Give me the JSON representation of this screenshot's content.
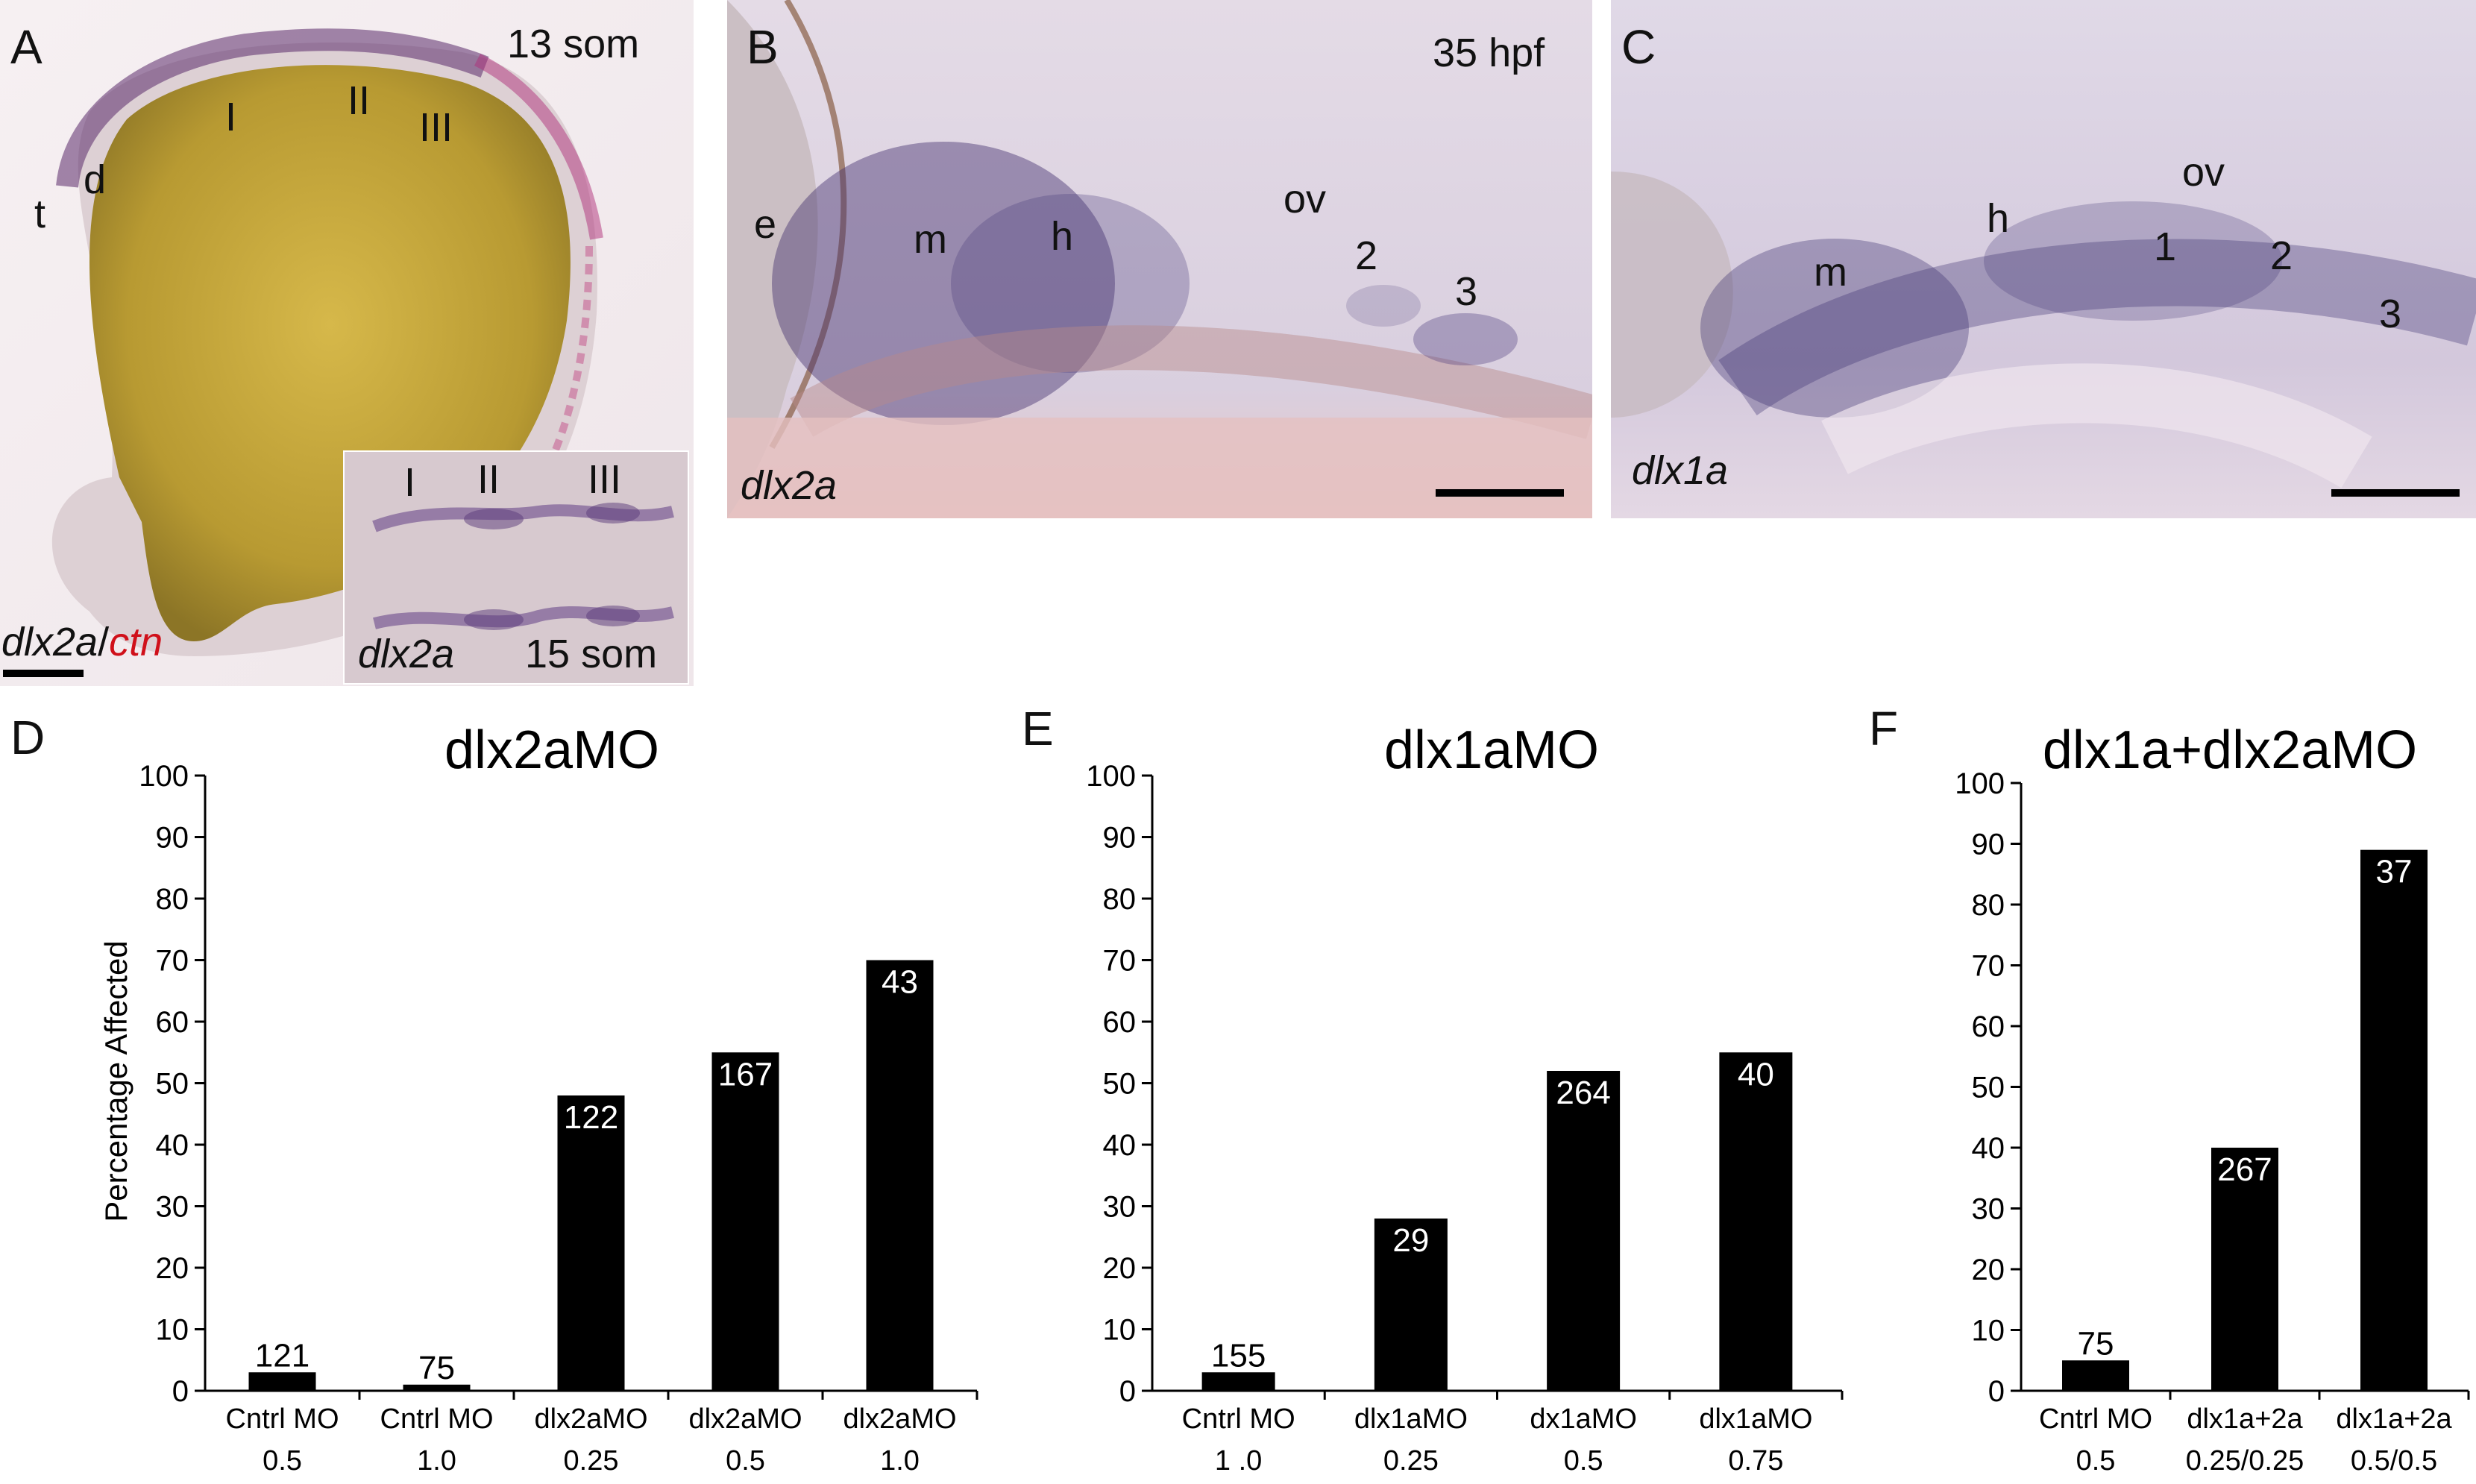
{
  "panels": {
    "A": {
      "label": "A",
      "stage": "13 som",
      "marks": [
        "t",
        "d",
        "I",
        "II",
        "III"
      ],
      "caption_gene": "dlx2a",
      "caption_sep": "/",
      "caption_gene2": "ctn",
      "caption_gene2_color": "#d0101a",
      "inset": {
        "marks": [
          "I",
          "II",
          "III"
        ],
        "gene": "dlx2a",
        "stage": "15 som"
      }
    },
    "B": {
      "label": "B",
      "stage": "35 hpf",
      "marks": [
        "e",
        "m",
        "h",
        "ov",
        "2",
        "3"
      ],
      "gene": "dlx2a"
    },
    "C": {
      "label": "C",
      "marks": [
        "m",
        "h",
        "ov",
        "1",
        "2",
        "3"
      ],
      "gene": "dlx1a"
    },
    "D": {
      "label": "D"
    },
    "E": {
      "label": "E"
    },
    "F": {
      "label": "F"
    }
  },
  "chart_data": [
    {
      "type": "bar",
      "title": "dlx2aMO",
      "ylabel": "Percentage Affected",
      "ylim": [
        0,
        100
      ],
      "yticks": [
        0,
        10,
        20,
        30,
        40,
        50,
        60,
        70,
        80,
        90,
        100
      ],
      "categories": [
        [
          "Cntrl MO",
          "0.5"
        ],
        [
          "Cntrl MO",
          "1.0"
        ],
        [
          "dlx2aMO",
          "0.25"
        ],
        [
          "dlx2aMO",
          "0.5"
        ],
        [
          "dlx2aMO",
          "1.0"
        ]
      ],
      "values": [
        3,
        1,
        48,
        55,
        70
      ],
      "data_labels": [
        "121",
        "75",
        "122",
        "167",
        "43"
      ]
    },
    {
      "type": "bar",
      "title": "dlx1aMO",
      "ylabel": "",
      "ylim": [
        0,
        100
      ],
      "yticks": [
        0,
        10,
        20,
        30,
        40,
        50,
        60,
        70,
        80,
        90,
        100
      ],
      "categories": [
        [
          "Cntrl MO",
          "1 .0"
        ],
        [
          "dlx1aMO",
          "0.25"
        ],
        [
          "dx1aMO",
          "0.5"
        ],
        [
          "dlx1aMO",
          "0.75"
        ]
      ],
      "values": [
        3,
        28,
        52,
        55
      ],
      "data_labels": [
        "155",
        "29",
        "264",
        "40"
      ]
    },
    {
      "type": "bar",
      "title": "dlx1a+dlx2aMO",
      "ylabel": "",
      "ylim": [
        0,
        100
      ],
      "yticks": [
        0,
        10,
        20,
        30,
        40,
        50,
        60,
        70,
        80,
        90,
        100
      ],
      "categories": [
        [
          "Cntrl MO",
          "0.5"
        ],
        [
          "dlx1a+2a",
          "0.25/0.25"
        ],
        [
          "dlx1a+2a",
          "0.5/0.5"
        ]
      ],
      "values": [
        5,
        40,
        89
      ],
      "data_labels": [
        "75",
        "267",
        "37"
      ]
    }
  ]
}
